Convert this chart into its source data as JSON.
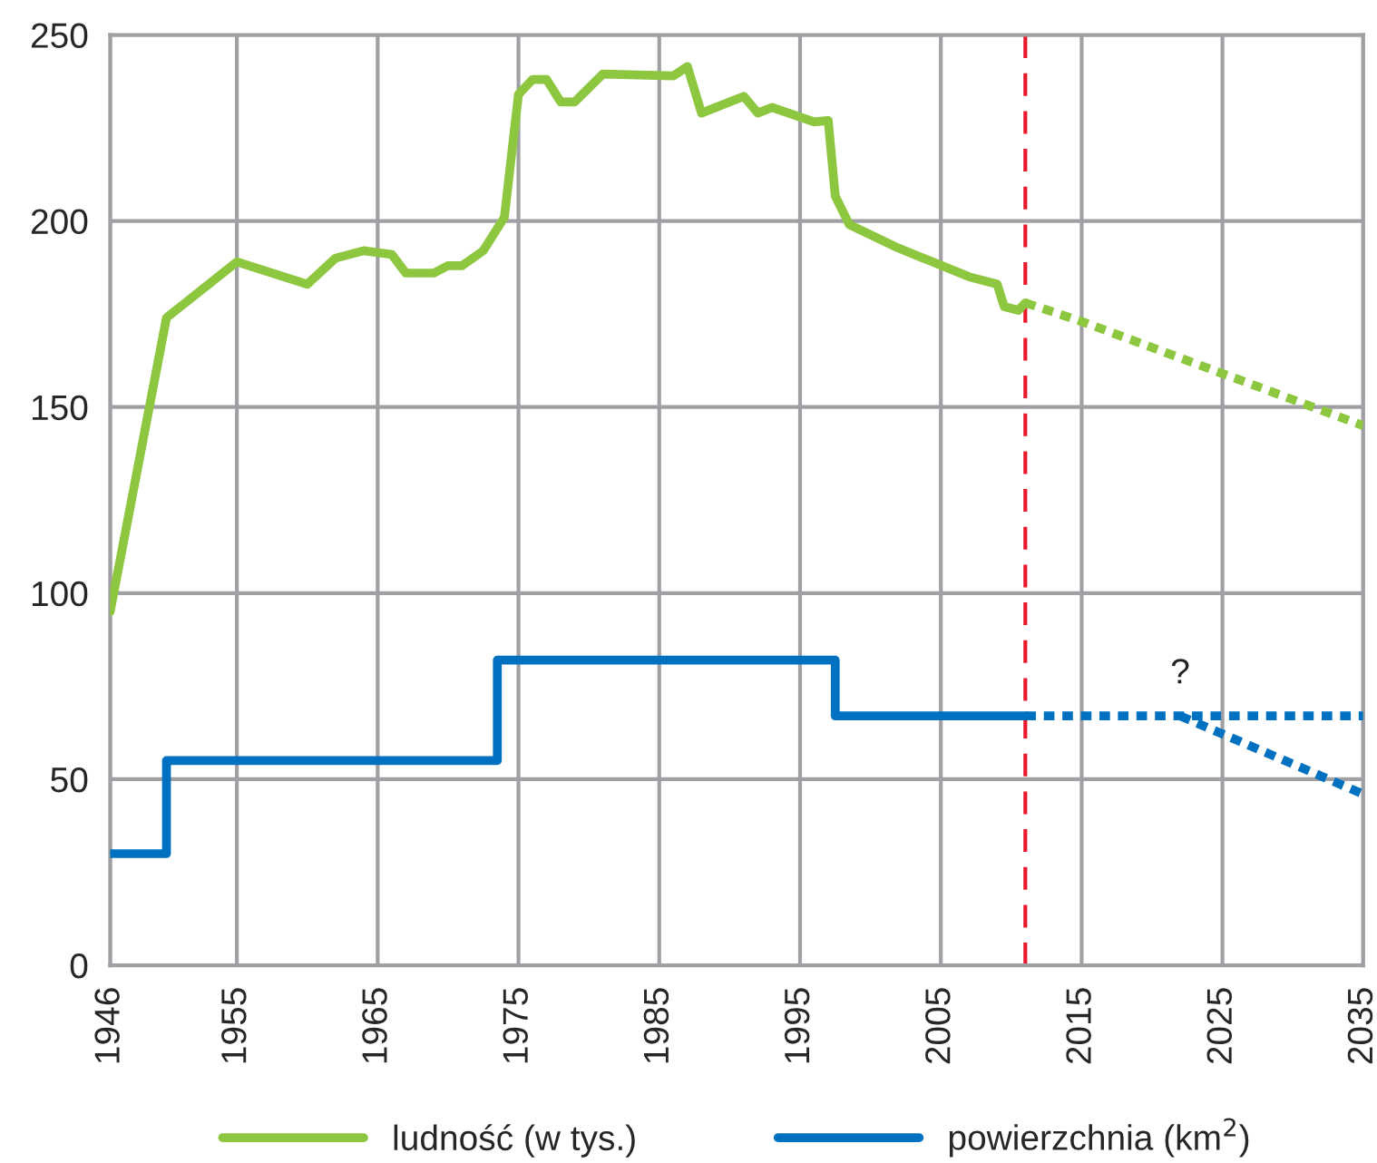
{
  "chart_data": {
    "type": "line",
    "xlim": [
      1946,
      2035
    ],
    "xticks": [
      1946,
      1955,
      1965,
      1975,
      1985,
      1995,
      2005,
      2015,
      2025,
      2035
    ],
    "ylim": [
      0,
      250
    ],
    "yticks": [
      0,
      50,
      100,
      150,
      200,
      250
    ],
    "grid": true,
    "legend": "bottom",
    "marker": "none",
    "series": [
      {
        "name": "ludność (w tys.)",
        "color": "#8dc63f",
        "line_style": "solid",
        "x": [
          1946,
          1950,
          1955,
          1960,
          1962,
          1964,
          1966,
          1967,
          1969,
          1970,
          1971,
          1972.5,
          1974,
          1975,
          1976,
          1977,
          1978,
          1979,
          1981,
          1986,
          1987,
          1988,
          1991,
          1992,
          1993,
          1996,
          1997,
          1997.5,
          1998.5,
          2002,
          2007,
          2009,
          2009.5,
          2010.5,
          2011
        ],
        "values": [
          95,
          174,
          189,
          183,
          190,
          192,
          191,
          186,
          186,
          188,
          188,
          192,
          201,
          234,
          238,
          238,
          232,
          232,
          239.5,
          239,
          241.5,
          229,
          233.5,
          229,
          230.5,
          226.6,
          227,
          206.7,
          199,
          192.7,
          185,
          183,
          177,
          176,
          178
        ]
      },
      {
        "color": "#8dc63f",
        "line_style": "dotted",
        "x": [
          2011,
          2015,
          2025,
          2035
        ],
        "values": [
          178,
          173,
          159,
          145
        ]
      },
      {
        "name": "powierzchnia (km$^{2}$)",
        "color": "#0070c0",
        "type": "step",
        "line_style": "solid",
        "x": [
          1946,
          1950,
          1973.5,
          1997.5,
          2011
        ],
        "values": [
          30,
          55,
          82,
          67,
          67
        ]
      },
      {
        "color": "#0070c0",
        "line_style": "dotted",
        "x": [
          2011,
          2035
        ],
        "values": [
          67,
          67
        ]
      },
      {
        "color": "#0070c0",
        "line_style": "dotted",
        "x": [
          2022,
          2035
        ],
        "values": [
          67,
          46
        ]
      }
    ],
    "ref_lines": [
      {
        "axis": "x",
        "value": 2011,
        "color": "#e8192c",
        "line_style": "dashed"
      }
    ],
    "annotations": [
      {
        "text": "?",
        "x": 2022,
        "y": 67
      }
    ]
  }
}
